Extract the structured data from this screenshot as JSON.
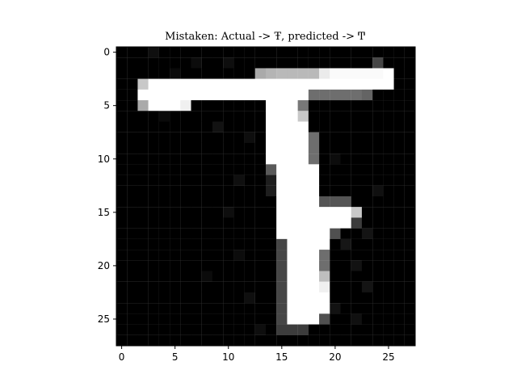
{
  "chart_data": {
    "type": "heatmap",
    "title": "Mistaken: Actual -> Ŧ, predicted -> Ͳ",
    "colormap": "gray",
    "value_range": [
      0,
      255
    ],
    "rows": 28,
    "cols": 28,
    "xlim": [
      -0.5,
      27.5
    ],
    "ylim": [
      27.5,
      -0.5
    ],
    "x_ticks": [
      0,
      5,
      10,
      15,
      20,
      25
    ],
    "y_ticks": [
      0,
      5,
      10,
      15,
      20,
      25
    ],
    "x_tick_labels": [
      "0",
      "5",
      "10",
      "15",
      "20",
      "25"
    ],
    "y_tick_labels": [
      "0",
      "5",
      "10",
      "15",
      "20",
      "25"
    ],
    "pixels": [
      {
        "row": 1,
        "col": 24,
        "value": 70
      },
      {
        "row": 2,
        "col": 13,
        "value": 170
      },
      {
        "row": 2,
        "col": 14,
        "value": 180
      },
      {
        "row": 2,
        "col": 15,
        "value": 185
      },
      {
        "row": 2,
        "col": 16,
        "value": 185
      },
      {
        "row": 2,
        "col": 17,
        "value": 185
      },
      {
        "row": 2,
        "col": 18,
        "value": 185
      },
      {
        "row": 2,
        "col": 19,
        "value": 235
      },
      {
        "row": 2,
        "col": 20,
        "value": 250
      },
      {
        "row": 2,
        "col": 21,
        "value": 250
      },
      {
        "row": 2,
        "col": 22,
        "value": 250
      },
      {
        "row": 2,
        "col": 23,
        "value": 250
      },
      {
        "row": 2,
        "col": 24,
        "value": 250
      },
      {
        "row": 2,
        "col": 25,
        "value": 255
      },
      {
        "row": 3,
        "col": 2,
        "value": 200
      },
      {
        "row": 3,
        "col": 3,
        "value": 255
      },
      {
        "row": 3,
        "col": 4,
        "value": 255
      },
      {
        "row": 3,
        "col": 5,
        "value": 255
      },
      {
        "row": 3,
        "col": 6,
        "value": 255
      },
      {
        "row": 3,
        "col": 7,
        "value": 255
      },
      {
        "row": 3,
        "col": 8,
        "value": 255
      },
      {
        "row": 3,
        "col": 9,
        "value": 255
      },
      {
        "row": 3,
        "col": 10,
        "value": 255
      },
      {
        "row": 3,
        "col": 11,
        "value": 255
      },
      {
        "row": 3,
        "col": 12,
        "value": 255
      },
      {
        "row": 3,
        "col": 13,
        "value": 255
      },
      {
        "row": 3,
        "col": 14,
        "value": 255
      },
      {
        "row": 3,
        "col": 15,
        "value": 255
      },
      {
        "row": 3,
        "col": 16,
        "value": 255
      },
      {
        "row": 3,
        "col": 17,
        "value": 255
      },
      {
        "row": 3,
        "col": 18,
        "value": 255
      },
      {
        "row": 3,
        "col": 19,
        "value": 255
      },
      {
        "row": 3,
        "col": 20,
        "value": 255
      },
      {
        "row": 3,
        "col": 21,
        "value": 255
      },
      {
        "row": 3,
        "col": 22,
        "value": 255
      },
      {
        "row": 3,
        "col": 23,
        "value": 255
      },
      {
        "row": 3,
        "col": 24,
        "value": 255
      },
      {
        "row": 3,
        "col": 25,
        "value": 255
      },
      {
        "row": 4,
        "col": 2,
        "value": 255
      },
      {
        "row": 4,
        "col": 3,
        "value": 255
      },
      {
        "row": 4,
        "col": 4,
        "value": 255
      },
      {
        "row": 4,
        "col": 5,
        "value": 255
      },
      {
        "row": 4,
        "col": 6,
        "value": 255
      },
      {
        "row": 4,
        "col": 7,
        "value": 255
      },
      {
        "row": 4,
        "col": 8,
        "value": 255
      },
      {
        "row": 4,
        "col": 9,
        "value": 255
      },
      {
        "row": 4,
        "col": 10,
        "value": 255
      },
      {
        "row": 4,
        "col": 11,
        "value": 255
      },
      {
        "row": 4,
        "col": 12,
        "value": 255
      },
      {
        "row": 4,
        "col": 13,
        "value": 255
      },
      {
        "row": 4,
        "col": 14,
        "value": 255
      },
      {
        "row": 4,
        "col": 15,
        "value": 255
      },
      {
        "row": 4,
        "col": 16,
        "value": 255
      },
      {
        "row": 4,
        "col": 17,
        "value": 255
      },
      {
        "row": 4,
        "col": 18,
        "value": 110
      },
      {
        "row": 4,
        "col": 19,
        "value": 110
      },
      {
        "row": 4,
        "col": 20,
        "value": 110
      },
      {
        "row": 4,
        "col": 21,
        "value": 110
      },
      {
        "row": 4,
        "col": 22,
        "value": 110
      },
      {
        "row": 4,
        "col": 23,
        "value": 100
      },
      {
        "row": 5,
        "col": 2,
        "value": 170
      },
      {
        "row": 5,
        "col": 3,
        "value": 255
      },
      {
        "row": 5,
        "col": 4,
        "value": 255
      },
      {
        "row": 5,
        "col": 5,
        "value": 255
      },
      {
        "row": 5,
        "col": 6,
        "value": 240
      },
      {
        "row": 5,
        "col": 14,
        "value": 255
      },
      {
        "row": 5,
        "col": 15,
        "value": 255
      },
      {
        "row": 5,
        "col": 16,
        "value": 255
      },
      {
        "row": 5,
        "col": 17,
        "value": 120
      },
      {
        "row": 6,
        "col": 14,
        "value": 255
      },
      {
        "row": 6,
        "col": 15,
        "value": 255
      },
      {
        "row": 6,
        "col": 16,
        "value": 255
      },
      {
        "row": 6,
        "col": 17,
        "value": 200
      },
      {
        "row": 7,
        "col": 14,
        "value": 255
      },
      {
        "row": 7,
        "col": 15,
        "value": 255
      },
      {
        "row": 7,
        "col": 16,
        "value": 255
      },
      {
        "row": 7,
        "col": 17,
        "value": 255
      },
      {
        "row": 8,
        "col": 14,
        "value": 255
      },
      {
        "row": 8,
        "col": 15,
        "value": 255
      },
      {
        "row": 8,
        "col": 16,
        "value": 255
      },
      {
        "row": 8,
        "col": 17,
        "value": 255
      },
      {
        "row": 8,
        "col": 18,
        "value": 110
      },
      {
        "row": 9,
        "col": 14,
        "value": 255
      },
      {
        "row": 9,
        "col": 15,
        "value": 255
      },
      {
        "row": 9,
        "col": 16,
        "value": 255
      },
      {
        "row": 9,
        "col": 17,
        "value": 255
      },
      {
        "row": 9,
        "col": 18,
        "value": 110
      },
      {
        "row": 10,
        "col": 14,
        "value": 255
      },
      {
        "row": 10,
        "col": 15,
        "value": 255
      },
      {
        "row": 10,
        "col": 16,
        "value": 255
      },
      {
        "row": 10,
        "col": 17,
        "value": 255
      },
      {
        "row": 10,
        "col": 18,
        "value": 110
      },
      {
        "row": 11,
        "col": 14,
        "value": 90
      },
      {
        "row": 11,
        "col": 15,
        "value": 255
      },
      {
        "row": 11,
        "col": 16,
        "value": 255
      },
      {
        "row": 11,
        "col": 17,
        "value": 255
      },
      {
        "row": 11,
        "col": 18,
        "value": 255
      },
      {
        "row": 12,
        "col": 14,
        "value": 30
      },
      {
        "row": 12,
        "col": 15,
        "value": 255
      },
      {
        "row": 12,
        "col": 16,
        "value": 255
      },
      {
        "row": 12,
        "col": 17,
        "value": 255
      },
      {
        "row": 12,
        "col": 18,
        "value": 255
      },
      {
        "row": 13,
        "col": 14,
        "value": 30
      },
      {
        "row": 13,
        "col": 15,
        "value": 255
      },
      {
        "row": 13,
        "col": 16,
        "value": 255
      },
      {
        "row": 13,
        "col": 17,
        "value": 255
      },
      {
        "row": 13,
        "col": 18,
        "value": 255
      },
      {
        "row": 14,
        "col": 15,
        "value": 255
      },
      {
        "row": 14,
        "col": 16,
        "value": 255
      },
      {
        "row": 14,
        "col": 17,
        "value": 255
      },
      {
        "row": 14,
        "col": 18,
        "value": 255
      },
      {
        "row": 14,
        "col": 19,
        "value": 85
      },
      {
        "row": 14,
        "col": 20,
        "value": 85
      },
      {
        "row": 14,
        "col": 21,
        "value": 85
      },
      {
        "row": 15,
        "col": 15,
        "value": 255
      },
      {
        "row": 15,
        "col": 16,
        "value": 255
      },
      {
        "row": 15,
        "col": 17,
        "value": 255
      },
      {
        "row": 15,
        "col": 18,
        "value": 255
      },
      {
        "row": 15,
        "col": 19,
        "value": 255
      },
      {
        "row": 15,
        "col": 20,
        "value": 255
      },
      {
        "row": 15,
        "col": 21,
        "value": 255
      },
      {
        "row": 15,
        "col": 22,
        "value": 200
      },
      {
        "row": 16,
        "col": 15,
        "value": 255
      },
      {
        "row": 16,
        "col": 16,
        "value": 255
      },
      {
        "row": 16,
        "col": 17,
        "value": 255
      },
      {
        "row": 16,
        "col": 18,
        "value": 255
      },
      {
        "row": 16,
        "col": 19,
        "value": 255
      },
      {
        "row": 16,
        "col": 20,
        "value": 255
      },
      {
        "row": 16,
        "col": 21,
        "value": 255
      },
      {
        "row": 16,
        "col": 22,
        "value": 60
      },
      {
        "row": 17,
        "col": 15,
        "value": 255
      },
      {
        "row": 17,
        "col": 16,
        "value": 255
      },
      {
        "row": 17,
        "col": 17,
        "value": 255
      },
      {
        "row": 17,
        "col": 18,
        "value": 255
      },
      {
        "row": 17,
        "col": 19,
        "value": 255
      },
      {
        "row": 17,
        "col": 20,
        "value": 80
      },
      {
        "row": 18,
        "col": 15,
        "value": 70
      },
      {
        "row": 18,
        "col": 16,
        "value": 255
      },
      {
        "row": 18,
        "col": 17,
        "value": 255
      },
      {
        "row": 18,
        "col": 18,
        "value": 255
      },
      {
        "row": 18,
        "col": 19,
        "value": 255
      },
      {
        "row": 19,
        "col": 15,
        "value": 70
      },
      {
        "row": 19,
        "col": 16,
        "value": 255
      },
      {
        "row": 19,
        "col": 17,
        "value": 255
      },
      {
        "row": 19,
        "col": 18,
        "value": 255
      },
      {
        "row": 19,
        "col": 19,
        "value": 110
      },
      {
        "row": 20,
        "col": 15,
        "value": 70
      },
      {
        "row": 20,
        "col": 16,
        "value": 255
      },
      {
        "row": 20,
        "col": 17,
        "value": 255
      },
      {
        "row": 20,
        "col": 18,
        "value": 255
      },
      {
        "row": 20,
        "col": 19,
        "value": 110
      },
      {
        "row": 21,
        "col": 15,
        "value": 70
      },
      {
        "row": 21,
        "col": 16,
        "value": 255
      },
      {
        "row": 21,
        "col": 17,
        "value": 255
      },
      {
        "row": 21,
        "col": 18,
        "value": 255
      },
      {
        "row": 21,
        "col": 19,
        "value": 190
      },
      {
        "row": 22,
        "col": 15,
        "value": 70
      },
      {
        "row": 22,
        "col": 16,
        "value": 255
      },
      {
        "row": 22,
        "col": 17,
        "value": 255
      },
      {
        "row": 22,
        "col": 18,
        "value": 255
      },
      {
        "row": 22,
        "col": 19,
        "value": 240
      },
      {
        "row": 23,
        "col": 15,
        "value": 70
      },
      {
        "row": 23,
        "col": 16,
        "value": 255
      },
      {
        "row": 23,
        "col": 17,
        "value": 255
      },
      {
        "row": 23,
        "col": 18,
        "value": 255
      },
      {
        "row": 23,
        "col": 19,
        "value": 255
      },
      {
        "row": 24,
        "col": 15,
        "value": 70
      },
      {
        "row": 24,
        "col": 16,
        "value": 255
      },
      {
        "row": 24,
        "col": 17,
        "value": 255
      },
      {
        "row": 24,
        "col": 18,
        "value": 255
      },
      {
        "row": 24,
        "col": 19,
        "value": 255
      },
      {
        "row": 25,
        "col": 15,
        "value": 70
      },
      {
        "row": 25,
        "col": 16,
        "value": 255
      },
      {
        "row": 25,
        "col": 17,
        "value": 255
      },
      {
        "row": 25,
        "col": 18,
        "value": 255
      },
      {
        "row": 25,
        "col": 19,
        "value": 80
      },
      {
        "row": 26,
        "col": 15,
        "value": 60
      },
      {
        "row": 26,
        "col": 16,
        "value": 60
      },
      {
        "row": 26,
        "col": 17,
        "value": 60
      },
      {
        "row": 0,
        "col": 3,
        "value": 15
      },
      {
        "row": 1,
        "col": 7,
        "value": 12
      },
      {
        "row": 1,
        "col": 10,
        "value": 14
      },
      {
        "row": 2,
        "col": 5,
        "value": 10
      },
      {
        "row": 6,
        "col": 4,
        "value": 10
      },
      {
        "row": 7,
        "col": 9,
        "value": 18
      },
      {
        "row": 8,
        "col": 12,
        "value": 14
      },
      {
        "row": 10,
        "col": 20,
        "value": 12
      },
      {
        "row": 12,
        "col": 11,
        "value": 15
      },
      {
        "row": 13,
        "col": 24,
        "value": 16
      },
      {
        "row": 15,
        "col": 10,
        "value": 14
      },
      {
        "row": 17,
        "col": 23,
        "value": 20
      },
      {
        "row": 18,
        "col": 21,
        "value": 22
      },
      {
        "row": 19,
        "col": 11,
        "value": 12
      },
      {
        "row": 20,
        "col": 22,
        "value": 18
      },
      {
        "row": 21,
        "col": 8,
        "value": 11
      },
      {
        "row": 22,
        "col": 23,
        "value": 20
      },
      {
        "row": 23,
        "col": 12,
        "value": 15
      },
      {
        "row": 24,
        "col": 20,
        "value": 18
      },
      {
        "row": 25,
        "col": 22,
        "value": 16
      },
      {
        "row": 26,
        "col": 13,
        "value": 14
      }
    ]
  }
}
